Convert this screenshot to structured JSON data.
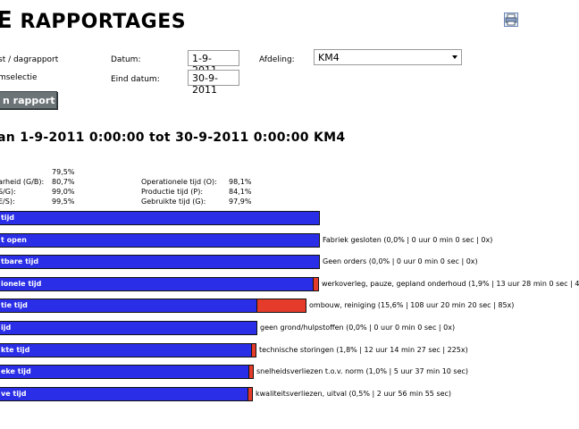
{
  "header": {
    "title_first": "E",
    "title_rest": "RAPPORTAGES"
  },
  "print_icon": "print-icon",
  "form": {
    "report_type_label": "st / dagrapport",
    "period_label": "mselectie",
    "date_label": "Datum:",
    "date_value": "1-9-2011",
    "end_date_label": "Eind datum:",
    "end_date_value": "30-9-2011",
    "department_label": "Afdeling:",
    "department_value": "KM4",
    "button_label": "n rapport"
  },
  "report": {
    "subtitle": "an 1-9-2011 0:00:00 tot 30-9-2011 0:00:00 KM4",
    "stats_left": [
      {
        "label": ":",
        "value": "79,5%"
      },
      {
        "label": "arheid (G/B):",
        "value": "80,7%"
      },
      {
        "label": "S/G):",
        "value": "99,0%"
      },
      {
        "label": "E/S):",
        "value": "99,5%"
      }
    ],
    "stats_right": [
      {
        "label": "Operationele tijd (O):",
        "value": "98,1%"
      },
      {
        "label": "Productie tijd (P):",
        "value": "84,1%"
      },
      {
        "label": "Gebruikte tijd (G):",
        "value": "97,9%"
      }
    ]
  },
  "bars": [
    {
      "label": "tijd",
      "fill": 1.0,
      "loss": 0.0,
      "note": ""
    },
    {
      "label": "t open",
      "fill": 1.0,
      "loss": 0.0,
      "note": "Fabriek gesloten (0,0% | 0 uur 0 min 0 sec | 0x)"
    },
    {
      "label": "tbare tijd",
      "fill": 1.0,
      "loss": 0.0,
      "note": "Geen orders (0,0% | 0 uur 0 min 0 sec | 0x)"
    },
    {
      "label": "ionele tijd",
      "fill": 0.981,
      "loss": 0.019,
      "note": "werkoverleg, pauze, gepland onderhoud (1,9% | 13 uur 28 min 0 sec | 4"
    },
    {
      "label": "tie tijd",
      "fill": 0.805,
      "loss": 0.156,
      "note": "ombouw, reiniging (15,6% | 108 uur 20 min 20 sec | 85x)"
    },
    {
      "label": "ijd",
      "fill": 0.805,
      "loss": 0.0,
      "note": "geen grond/hulpstoffen (0,0% | 0 uur 0 min 0 sec | 0x)"
    },
    {
      "label": "kte tijd",
      "fill": 0.788,
      "loss": 0.018,
      "note": "technische storingen (1,8% | 12 uur 14 min 27 sec | 225x)"
    },
    {
      "label": "eke tijd",
      "fill": 0.78,
      "loss": 0.01,
      "note": "snelheidsverliezen t.o.v. norm (1,0% | 5 uur 37 min 10 sec)"
    },
    {
      "label": "ve tijd",
      "fill": 0.776,
      "loss": 0.005,
      "note": "kwaliteitsverliezen, uitval (0,5% | 2 uur 56 min 55 sec)"
    }
  ],
  "colors": {
    "bar_blue": "#2a2ee6",
    "loss_red": "#e53b2b",
    "button_grey": "#6d7478"
  }
}
